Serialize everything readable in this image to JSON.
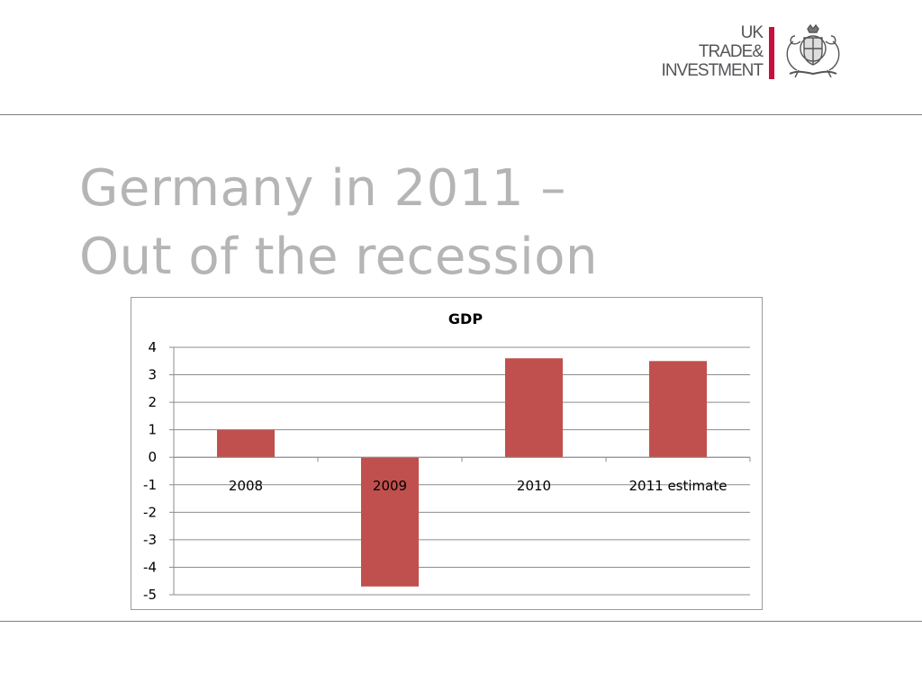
{
  "slide": {
    "title_line1": "Germany in 2011 –",
    "title_line2": "Out of the recession"
  },
  "logo": {
    "line1": "UK",
    "line2": "TRADE&",
    "line3": "INVESTMENT",
    "bar_color": "#c8103e",
    "crest_icon": "royal-coat-of-arms-icon"
  },
  "chart_data": {
    "type": "bar",
    "title": "GDP",
    "categories": [
      "2008",
      "2009",
      "2010",
      "2011 estimate"
    ],
    "values": [
      1.0,
      -4.7,
      3.6,
      3.5
    ],
    "ylim": [
      -5,
      4
    ],
    "yticks": [
      4,
      3,
      2,
      1,
      0,
      -1,
      -2,
      -3,
      -4,
      -5
    ],
    "grid": true,
    "legend": "none",
    "bar_color": "#c0504d"
  }
}
